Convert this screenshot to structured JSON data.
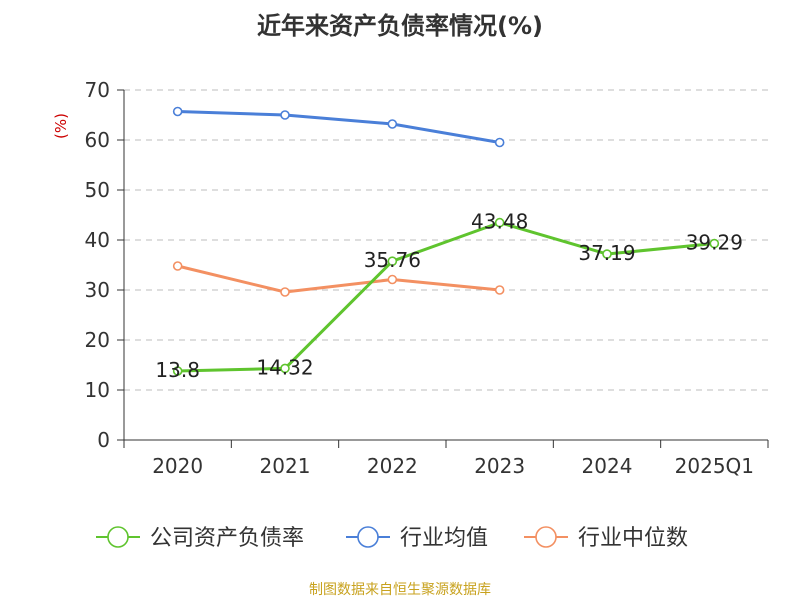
{
  "chart_data": {
    "type": "line",
    "title": "近年来资产负债率情况(%)",
    "ylabel": "(%)",
    "xlabel": "",
    "categories": [
      "2020",
      "2021",
      "2022",
      "2023",
      "2024",
      "2025Q1"
    ],
    "ylim": [
      0,
      70
    ],
    "yticks": [
      0,
      10,
      20,
      30,
      40,
      50,
      60,
      70
    ],
    "grid": true,
    "legend_position": "bottom",
    "series": [
      {
        "name": "公司资产负债率",
        "color": "#5fc42e",
        "values": [
          13.8,
          14.32,
          35.76,
          43.48,
          37.19,
          39.29
        ],
        "labels": [
          "13.8",
          "14.32",
          "35.76",
          "43.48",
          "37.19",
          "39.29"
        ]
      },
      {
        "name": "行业均值",
        "color": "#4a7fd8",
        "values": [
          65.7,
          65.0,
          63.2,
          59.5,
          null,
          null
        ],
        "labels": null
      },
      {
        "name": "行业中位数",
        "color": "#f39062",
        "values": [
          34.8,
          29.6,
          32.1,
          30.0,
          null,
          null
        ],
        "labels": null
      }
    ]
  },
  "source": "制图数据来自恒生聚源数据库"
}
